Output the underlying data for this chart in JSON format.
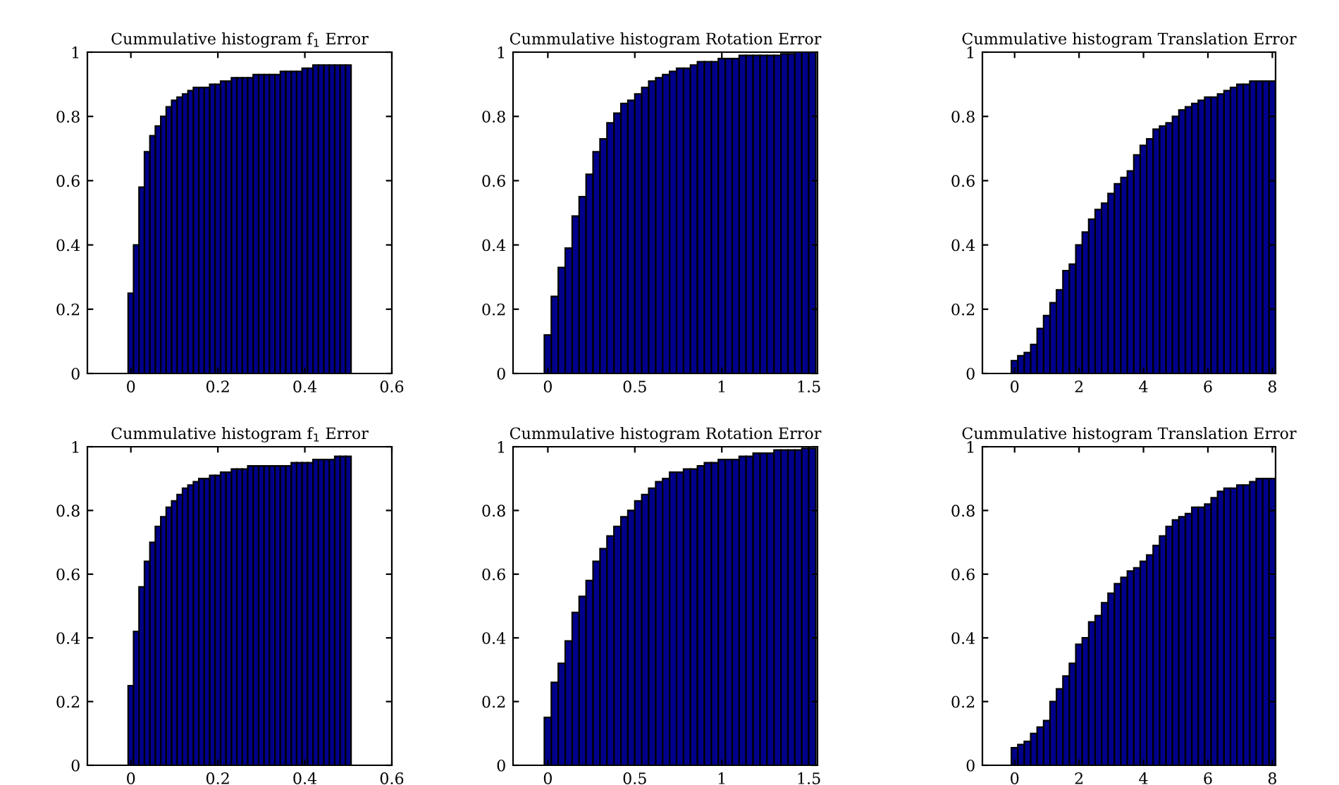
{
  "chart_data": [
    {
      "type": "histogram",
      "title": "Cummulative histogram f$_{1}$ Error",
      "color": "#00008b",
      "xlim": [
        -0.1,
        0.6
      ],
      "xticks": [
        0,
        0.2,
        0.4,
        0.6
      ],
      "ylim": [
        0,
        1
      ],
      "yticks": [
        0,
        0.2,
        0.4,
        0.6,
        0.8,
        1
      ],
      "bins": [
        -0.00625,
        0.00625,
        0.01875,
        0.03125,
        0.04375,
        0.05625,
        0.06875,
        0.08125,
        0.09375,
        0.10625,
        0.11875,
        0.13125,
        0.14375,
        0.15625,
        0.16875,
        0.18125,
        0.19375,
        0.20625,
        0.21875,
        0.23125,
        0.24375,
        0.25625,
        0.26875,
        0.28125,
        0.29375,
        0.30625,
        0.31875,
        0.33125,
        0.34375,
        0.35625,
        0.36875,
        0.38125,
        0.39375,
        0.40625,
        0.41875,
        0.43125,
        0.44375,
        0.45625,
        0.46875,
        0.48125,
        0.49375,
        0.50625
      ],
      "values": [
        0.25,
        0.4,
        0.58,
        0.69,
        0.74,
        0.77,
        0.8,
        0.83,
        0.85,
        0.86,
        0.87,
        0.88,
        0.89,
        0.89,
        0.89,
        0.9,
        0.9,
        0.91,
        0.91,
        0.92,
        0.92,
        0.92,
        0.92,
        0.93,
        0.93,
        0.93,
        0.93,
        0.93,
        0.94,
        0.94,
        0.94,
        0.94,
        0.95,
        0.95,
        0.96,
        0.96,
        0.96,
        0.96,
        0.96,
        0.96,
        0.96
      ]
    },
    {
      "type": "histogram",
      "title": "Cummulative histogram Rotation Error",
      "color": "#00008b",
      "xlim": [
        -0.2,
        1.55
      ],
      "xticks": [
        0,
        0.5,
        1,
        1.5
      ],
      "ylim": [
        0,
        1
      ],
      "yticks": [
        0,
        0.2,
        0.4,
        0.6,
        0.8,
        1
      ],
      "bins": [
        -0.02,
        0.02,
        0.06,
        0.1,
        0.14,
        0.18,
        0.22,
        0.26,
        0.3,
        0.34,
        0.38,
        0.42,
        0.46,
        0.5,
        0.54,
        0.58,
        0.62,
        0.66,
        0.7,
        0.74,
        0.78,
        0.82,
        0.86,
        0.9,
        0.94,
        0.98,
        1.02,
        1.06,
        1.1,
        1.14,
        1.18,
        1.22,
        1.26,
        1.3,
        1.34,
        1.38,
        1.42,
        1.46,
        1.5,
        1.54
      ],
      "values": [
        0.12,
        0.24,
        0.33,
        0.39,
        0.49,
        0.55,
        0.62,
        0.69,
        0.73,
        0.78,
        0.81,
        0.84,
        0.85,
        0.87,
        0.89,
        0.91,
        0.92,
        0.93,
        0.94,
        0.95,
        0.95,
        0.96,
        0.97,
        0.97,
        0.97,
        0.98,
        0.98,
        0.98,
        0.99,
        0.99,
        0.99,
        0.99,
        0.99,
        0.99,
        0.995,
        0.995,
        1.0,
        1.0,
        1.0
      ]
    },
    {
      "type": "histogram",
      "title": "Cummulative histogram Translation Error",
      "color": "#00008b",
      "xlim": [
        -1,
        8.1
      ],
      "xticks": [
        0,
        2,
        4,
        6,
        8
      ],
      "ylim": [
        0,
        1
      ],
      "yticks": [
        0,
        0.2,
        0.4,
        0.6,
        0.8,
        1
      ],
      "bins": [
        -0.1,
        0.1,
        0.3,
        0.5,
        0.7,
        0.9,
        1.1,
        1.3,
        1.5,
        1.7,
        1.9,
        2.1,
        2.3,
        2.5,
        2.7,
        2.9,
        3.1,
        3.3,
        3.5,
        3.7,
        3.9,
        4.1,
        4.3,
        4.5,
        4.7,
        4.9,
        5.1,
        5.3,
        5.5,
        5.7,
        5.9,
        6.1,
        6.3,
        6.5,
        6.7,
        6.9,
        7.1,
        7.3,
        7.5,
        7.7,
        7.9,
        8.1
      ],
      "values": [
        0.04,
        0.055,
        0.065,
        0.09,
        0.14,
        0.18,
        0.22,
        0.26,
        0.32,
        0.34,
        0.4,
        0.44,
        0.48,
        0.51,
        0.53,
        0.56,
        0.59,
        0.61,
        0.63,
        0.68,
        0.71,
        0.73,
        0.76,
        0.77,
        0.78,
        0.8,
        0.82,
        0.83,
        0.84,
        0.85,
        0.86,
        0.86,
        0.87,
        0.88,
        0.89,
        0.9,
        0.9,
        0.91,
        0.91,
        0.91,
        0.91
      ]
    },
    {
      "type": "histogram",
      "title": "Cummulative histogram f$_{1}$ Error",
      "color": "#00008b",
      "xlim": [
        -0.1,
        0.6
      ],
      "xticks": [
        0,
        0.2,
        0.4,
        0.6
      ],
      "ylim": [
        0,
        1
      ],
      "yticks": [
        0,
        0.2,
        0.4,
        0.6,
        0.8,
        1
      ],
      "bins": [
        -0.00625,
        0.00625,
        0.01875,
        0.03125,
        0.04375,
        0.05625,
        0.06875,
        0.08125,
        0.09375,
        0.10625,
        0.11875,
        0.13125,
        0.14375,
        0.15625,
        0.16875,
        0.18125,
        0.19375,
        0.20625,
        0.21875,
        0.23125,
        0.24375,
        0.25625,
        0.26875,
        0.28125,
        0.29375,
        0.30625,
        0.31875,
        0.33125,
        0.34375,
        0.35625,
        0.36875,
        0.38125,
        0.39375,
        0.40625,
        0.41875,
        0.43125,
        0.44375,
        0.45625,
        0.46875,
        0.48125,
        0.49375,
        0.50625
      ],
      "values": [
        0.25,
        0.42,
        0.56,
        0.64,
        0.7,
        0.75,
        0.78,
        0.81,
        0.83,
        0.85,
        0.87,
        0.88,
        0.89,
        0.9,
        0.9,
        0.91,
        0.91,
        0.92,
        0.92,
        0.93,
        0.93,
        0.93,
        0.94,
        0.94,
        0.94,
        0.94,
        0.94,
        0.94,
        0.94,
        0.94,
        0.95,
        0.95,
        0.95,
        0.95,
        0.96,
        0.96,
        0.96,
        0.96,
        0.97,
        0.97,
        0.97
      ]
    },
    {
      "type": "histogram",
      "title": "Cummulative histogram Rotation Error",
      "color": "#00008b",
      "xlim": [
        -0.2,
        1.55
      ],
      "xticks": [
        0,
        0.5,
        1,
        1.5
      ],
      "ylim": [
        0,
        1
      ],
      "yticks": [
        0,
        0.2,
        0.4,
        0.6,
        0.8,
        1
      ],
      "bins": [
        -0.02,
        0.02,
        0.06,
        0.1,
        0.14,
        0.18,
        0.22,
        0.26,
        0.3,
        0.34,
        0.38,
        0.42,
        0.46,
        0.5,
        0.54,
        0.58,
        0.62,
        0.66,
        0.7,
        0.74,
        0.78,
        0.82,
        0.86,
        0.9,
        0.94,
        0.98,
        1.02,
        1.06,
        1.1,
        1.14,
        1.18,
        1.22,
        1.26,
        1.3,
        1.34,
        1.38,
        1.42,
        1.46,
        1.5,
        1.54
      ],
      "values": [
        0.15,
        0.26,
        0.32,
        0.39,
        0.48,
        0.53,
        0.58,
        0.64,
        0.68,
        0.72,
        0.75,
        0.78,
        0.8,
        0.83,
        0.85,
        0.87,
        0.89,
        0.9,
        0.92,
        0.92,
        0.93,
        0.93,
        0.94,
        0.95,
        0.95,
        0.96,
        0.96,
        0.96,
        0.97,
        0.97,
        0.98,
        0.98,
        0.98,
        0.99,
        0.99,
        0.99,
        0.99,
        0.995,
        0.995
      ]
    },
    {
      "type": "histogram",
      "title": "Cummulative histogram Translation Error",
      "color": "#00008b",
      "xlim": [
        -1,
        8.1
      ],
      "xticks": [
        0,
        2,
        4,
        6,
        8
      ],
      "ylim": [
        0,
        1
      ],
      "yticks": [
        0,
        0.2,
        0.4,
        0.6,
        0.8,
        1
      ],
      "bins": [
        -0.1,
        0.1,
        0.3,
        0.5,
        0.7,
        0.9,
        1.1,
        1.3,
        1.5,
        1.7,
        1.9,
        2.1,
        2.3,
        2.5,
        2.7,
        2.9,
        3.1,
        3.3,
        3.5,
        3.7,
        3.9,
        4.1,
        4.3,
        4.5,
        4.7,
        4.9,
        5.1,
        5.3,
        5.5,
        5.7,
        5.9,
        6.1,
        6.3,
        6.5,
        6.7,
        6.9,
        7.1,
        7.3,
        7.5,
        7.7,
        7.9,
        8.1
      ],
      "values": [
        0.055,
        0.065,
        0.075,
        0.1,
        0.12,
        0.14,
        0.2,
        0.24,
        0.28,
        0.32,
        0.38,
        0.4,
        0.45,
        0.47,
        0.51,
        0.54,
        0.57,
        0.59,
        0.61,
        0.62,
        0.64,
        0.66,
        0.69,
        0.72,
        0.75,
        0.77,
        0.78,
        0.79,
        0.81,
        0.81,
        0.82,
        0.84,
        0.86,
        0.87,
        0.87,
        0.88,
        0.88,
        0.89,
        0.9,
        0.9,
        0.9
      ]
    }
  ]
}
